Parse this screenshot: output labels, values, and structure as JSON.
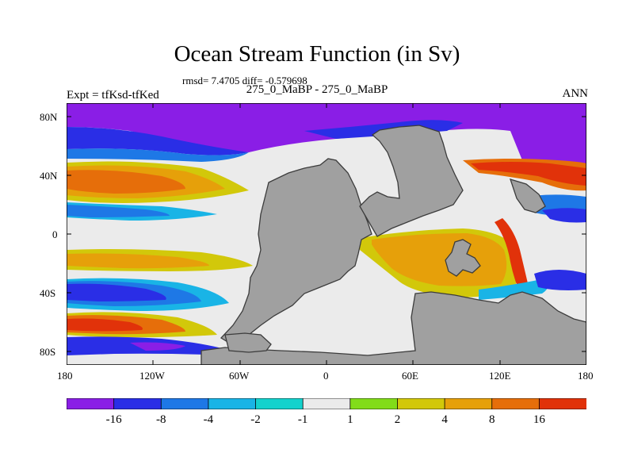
{
  "title": "Ocean Stream Function (in Sv)",
  "stats": "rmsd= 7.4705 diff= -0.579698",
  "subtitle": "275_0_MaBP - 275_0_MaBP",
  "experiment": "Expt = tfKsd-tfKed",
  "season": "ANN",
  "axes": {
    "lat_labels": [
      "80N",
      "40N",
      "0",
      "40S",
      "80S"
    ],
    "lon_labels": [
      "180",
      "120W",
      "60W",
      "0",
      "60E",
      "120E",
      "180"
    ]
  },
  "colorbar": {
    "labels": [
      "-16",
      "-8",
      "-4",
      "-2",
      "-1",
      "1",
      "2",
      "4",
      "8",
      "16"
    ],
    "colors": [
      "#8a1ee6",
      "#2a2ee6",
      "#1e78e6",
      "#19b4e6",
      "#14d2cd",
      "#ebebeb",
      "#82dc19",
      "#d2c80a",
      "#e6a00a",
      "#e66e0a",
      "#e1320a"
    ]
  },
  "palette": {
    "land": "#a0a0a0",
    "coast": "#3c3c3c"
  }
}
